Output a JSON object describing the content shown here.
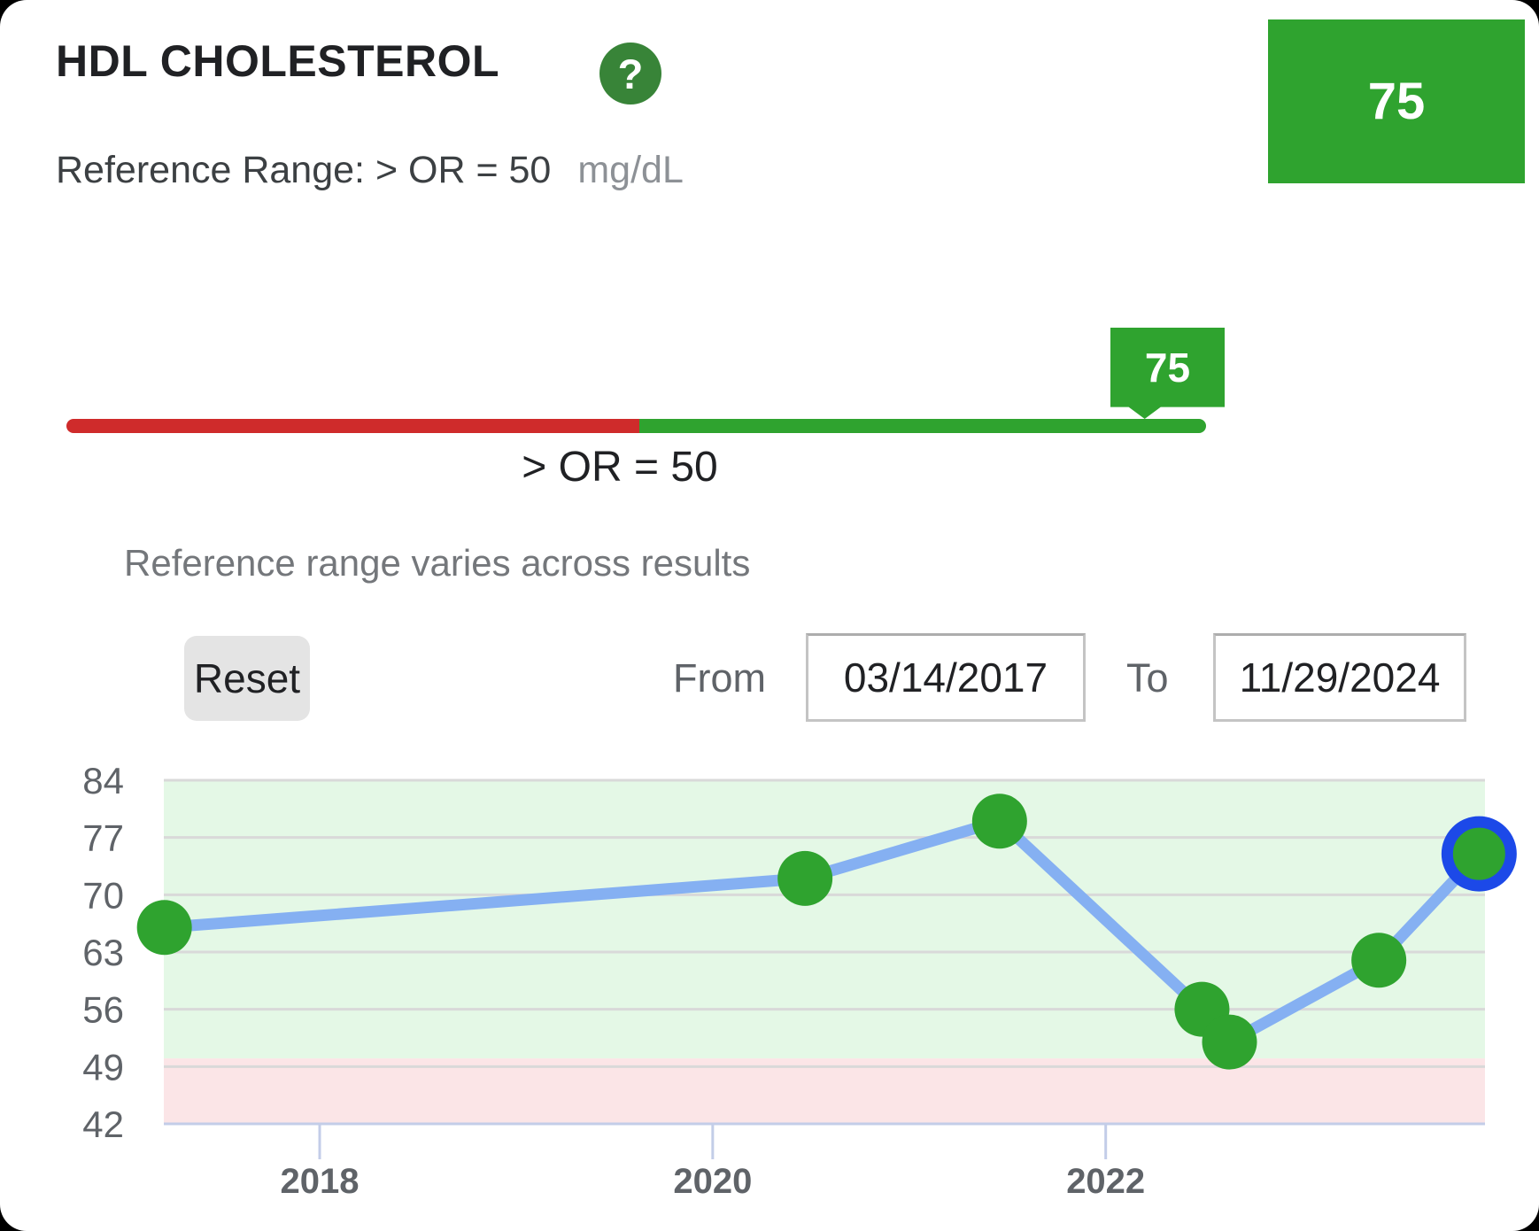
{
  "header": {
    "title": "HDL CHOLESTEROL",
    "help_glyph": "?",
    "current_value": "75",
    "reference_label": "Reference Range: > OR = 50",
    "unit": "mg/dL"
  },
  "range_bar": {
    "marker_value": "75",
    "threshold_label": "> OR = 50",
    "note": "Reference range varies across results",
    "below_range_color": "#cf2b2b",
    "in_range_color": "#2fa32f"
  },
  "controls": {
    "reset_label": "Reset",
    "from_label": "From",
    "from_value": "03/14/2017",
    "to_label": "To",
    "to_value": "11/29/2024"
  },
  "chart_data": {
    "type": "line",
    "title": "HDL Cholesterol trend",
    "x": [
      2017.21,
      2020.47,
      2021.46,
      2022.49,
      2022.63,
      2023.39,
      2023.9
    ],
    "values": [
      66,
      72,
      79,
      56,
      52,
      62,
      75
    ],
    "highlighted_index": 6,
    "xlim": [
      2017.207,
      2023.93
    ],
    "ylim": [
      42,
      84
    ],
    "xtick_labels": [
      2018,
      2020,
      2022
    ],
    "ytick_labels": [
      84,
      77,
      70,
      63,
      56,
      49,
      42
    ],
    "reference_min": 50,
    "grid": true,
    "in_range_band_color": "#e4f8e6",
    "out_of_range_band_color": "#fbe5e7",
    "gridline_color": "#d9d9d9",
    "axis_color": "#c3cde8",
    "tick_label_color": "#5f6368",
    "line_color": "#85b0f2",
    "point_color": "#2fa32f",
    "highlight_ring_color": "#1c49e8"
  }
}
